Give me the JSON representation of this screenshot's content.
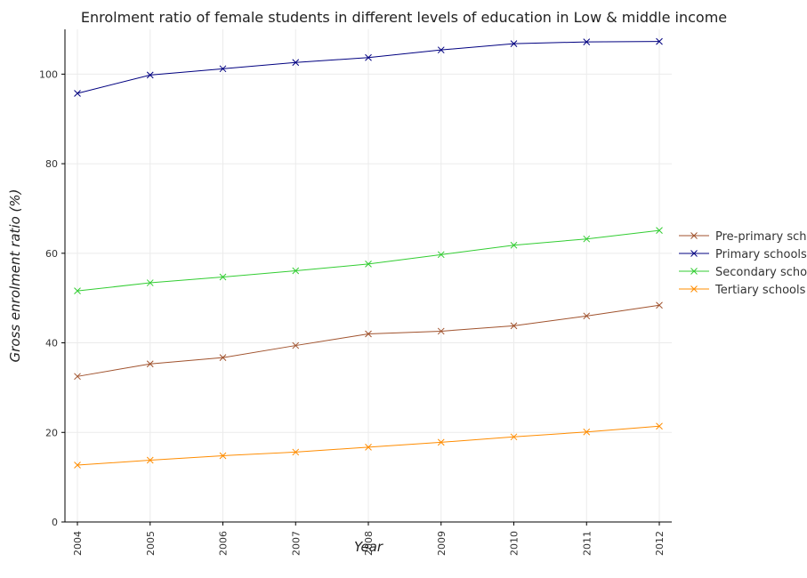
{
  "chart_data": {
    "type": "line",
    "title": "Enrolment ratio of female students in different levels of education in Low & middle income",
    "xlabel": "Year",
    "ylabel": "Gross enrolment ratio (%)",
    "x": [
      "2004",
      "2005",
      "2006",
      "2007",
      "2008",
      "2009",
      "2010",
      "2011",
      "2012"
    ],
    "ylim": [
      0,
      110
    ],
    "yticks": [
      0,
      20,
      40,
      60,
      80,
      100
    ],
    "grid": true,
    "legend_position": "right",
    "series": [
      {
        "name": "Pre-primary schools",
        "color": "#a0522d",
        "values": [
          32.5,
          35.3,
          36.7,
          39.4,
          42.0,
          42.6,
          43.8,
          46.0,
          48.4
        ]
      },
      {
        "name": "Primary schools",
        "color": "#000080",
        "values": [
          95.7,
          99.8,
          101.2,
          102.6,
          103.7,
          105.4,
          106.8,
          107.2,
          107.3
        ]
      },
      {
        "name": "Secondary schools",
        "color": "#32cd32",
        "values": [
          51.6,
          53.4,
          54.7,
          56.1,
          57.6,
          59.7,
          61.8,
          63.2,
          65.1
        ]
      },
      {
        "name": "Tertiary schools",
        "color": "#ff8c00",
        "values": [
          12.7,
          13.8,
          14.8,
          15.6,
          16.7,
          17.8,
          19.0,
          20.1,
          21.4
        ]
      }
    ]
  }
}
